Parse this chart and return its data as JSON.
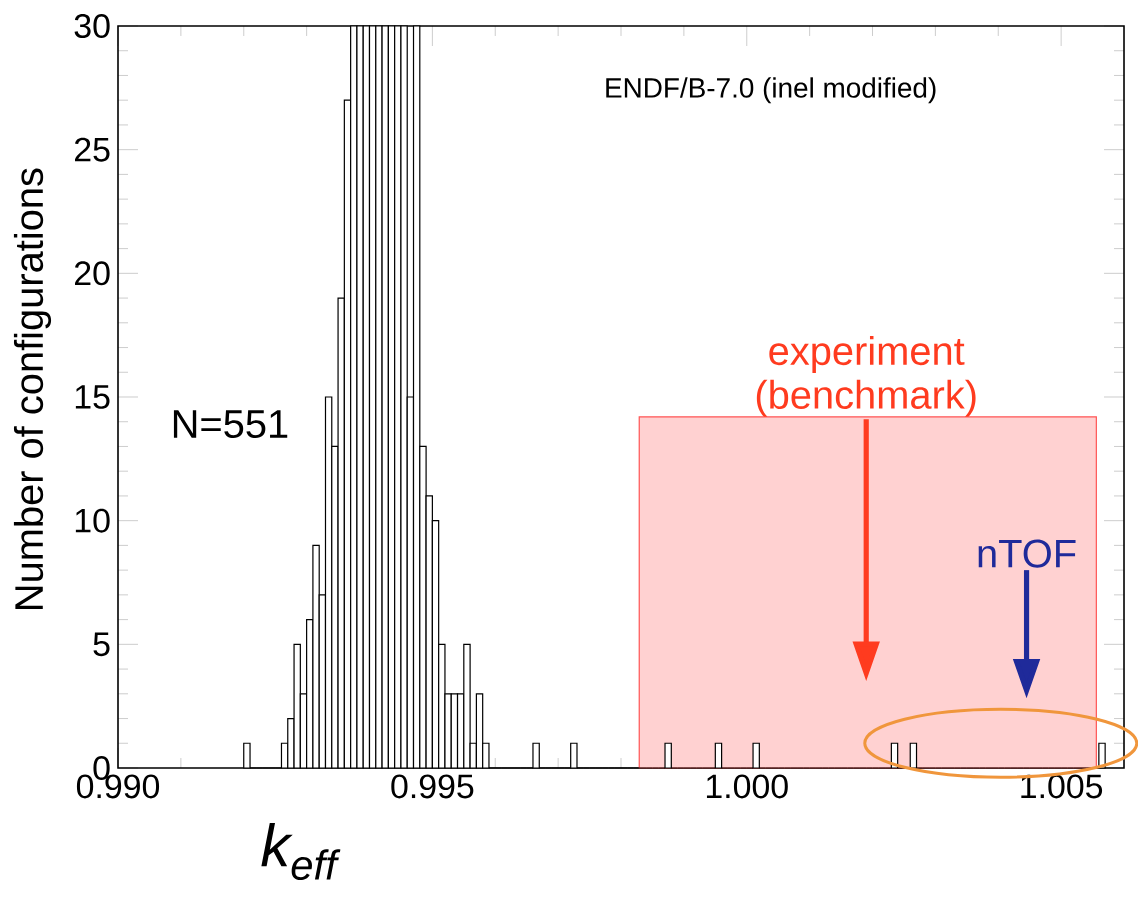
{
  "chart_data": {
    "type": "histogram",
    "xlabel": "k$_{eff}$",
    "ylabel": "Number of configurations",
    "color": "#000000",
    "bins": [
      0.992,
      0.9921,
      0.9922,
      0.9923,
      0.9924,
      0.9925,
      0.9926,
      0.9927,
      0.9928,
      0.9929,
      0.993,
      0.9931,
      0.9932,
      0.9933,
      0.9934,
      0.9935,
      0.9936,
      0.9937,
      0.9938,
      0.9939,
      0.994,
      0.9941,
      0.9942,
      0.9943,
      0.9944,
      0.9945,
      0.9946,
      0.9947,
      0.9948,
      0.9949,
      0.995,
      0.9951,
      0.9952,
      0.9953,
      0.9954,
      0.9955,
      0.9956,
      0.9957,
      0.9958,
      0.9959,
      0.996,
      0.9961,
      0.9962,
      0.9963,
      0.9964,
      0.9965,
      0.9966,
      0.9967,
      0.9968,
      0.9969,
      0.997,
      0.9971,
      0.9972,
      0.9973,
      0.9974,
      0.9975,
      0.9976,
      0.9977,
      0.9978,
      0.9979,
      0.998,
      0.9981,
      0.9982,
      0.9983,
      0.9984,
      0.9985,
      0.9986,
      0.9987,
      0.9988,
      0.9989,
      0.999,
      0.9991,
      0.9992,
      0.9993,
      0.9994,
      0.9995,
      0.9996,
      0.9997,
      0.9998,
      0.9999,
      1.0,
      1.0001,
      1.0002,
      1.0003,
      1.0004,
      1.0005,
      1.0006,
      1.0007,
      1.0008,
      1.0009,
      1.001,
      1.0011,
      1.0012,
      1.0013,
      1.0014,
      1.0015,
      1.0016,
      1.0017,
      1.0018,
      1.0019,
      1.002,
      1.0021,
      1.0022,
      1.0023,
      1.0024,
      1.0025,
      1.0026,
      1.0027,
      1.0028,
      1.0029,
      1.003,
      1.0031,
      1.0032,
      1.0033,
      1.0034,
      1.0035,
      1.0036,
      1.0037,
      1.0038,
      1.0039,
      1.004,
      1.0041,
      1.0042,
      1.0043,
      1.0044,
      1.0045,
      1.0046,
      1.0047,
      1.0048,
      1.0049,
      1.005,
      1.0051,
      1.0052,
      1.0053,
      1.0054,
      1.0055,
      1.0056,
      1.0057
    ],
    "values": [
      1,
      0,
      0,
      0,
      0,
      0,
      1,
      2,
      5,
      3,
      6,
      9,
      7,
      15,
      13,
      19,
      27,
      30,
      30,
      30,
      30,
      30,
      30,
      30,
      30,
      30,
      15,
      30,
      13,
      11,
      10,
      5,
      3,
      3,
      3,
      5,
      1,
      3,
      1,
      0,
      0,
      0,
      0,
      0,
      0,
      0,
      1,
      0,
      0,
      0,
      0,
      0,
      1,
      0,
      0,
      0,
      0,
      0,
      0,
      0,
      0,
      0,
      0,
      0,
      0,
      0,
      0,
      1,
      0,
      0,
      0,
      0,
      0,
      0,
      0,
      1,
      0,
      0,
      0,
      0,
      0,
      1,
      0,
      0,
      0,
      0,
      0,
      0,
      0,
      0,
      0,
      0,
      0,
      0,
      0,
      0,
      0,
      0,
      0,
      0,
      0,
      0,
      0,
      1,
      0,
      0,
      1,
      0,
      0,
      0,
      0,
      0,
      0,
      0,
      0,
      0,
      0,
      0,
      0,
      0,
      0,
      0,
      0,
      0,
      0,
      0,
      0,
      0,
      0,
      0,
      0,
      0,
      0,
      0,
      0,
      0,
      1
    ],
    "xlim": [
      0.99,
      1.006
    ],
    "ylim": [
      0,
      30
    ],
    "xticks": [
      {
        "value": 0.99,
        "label": "0.990"
      },
      {
        "value": 0.995,
        "label": "0.995"
      },
      {
        "value": 1.0,
        "label": "1.000"
      },
      {
        "value": 1.005,
        "label": "1.005"
      }
    ],
    "yticks": [
      0,
      5,
      10,
      15,
      20,
      25,
      30
    ],
    "bands": [
      {
        "axis": "x",
        "from": 0.99829,
        "to": 1.00556,
        "color": "#ffd1d1"
      }
    ],
    "annotations": [
      "ENDF/B-7.0 (inel modified)",
      "N=551",
      "experiment (benchmark)",
      "nTOF"
    ]
  }
}
